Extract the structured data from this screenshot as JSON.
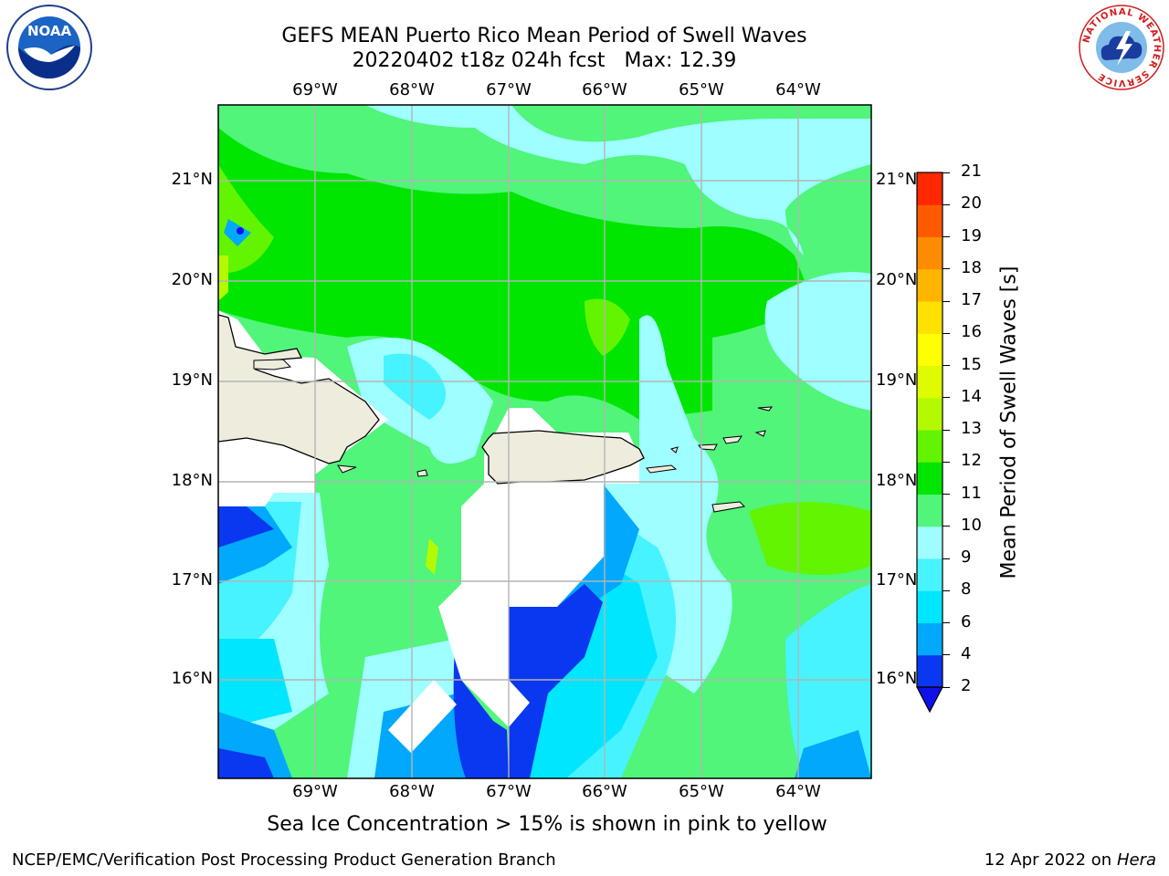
{
  "title": {
    "line1": "GEFS MEAN Puerto Rico Mean Period of Swell Waves",
    "line2": "20220402 t18z 024h fcst",
    "max_label": "Max: 12.39"
  },
  "map": {
    "lon_labels": [
      "69°W",
      "68°W",
      "67°W",
      "66°W",
      "65°W",
      "64°W"
    ],
    "lat_labels": [
      "21°N",
      "20°N",
      "19°N",
      "18°N",
      "17°N",
      "16°N"
    ],
    "land_color": "#eeecdd"
  },
  "colorbar": {
    "label": "Mean Period of Swell Waves [s]",
    "ticks": [
      "2",
      "4",
      "6",
      "8",
      "9",
      "10",
      "11",
      "12",
      "13",
      "14",
      "15",
      "16",
      "17",
      "18",
      "19",
      "20",
      "21"
    ],
    "colors": [
      "#0a37f0",
      "#02a8fb",
      "#00e6ff",
      "#47f3ff",
      "#9ffeff",
      "#50f57a",
      "#00e600",
      "#62f400",
      "#b5f900",
      "#dffb00",
      "#ffff00",
      "#ffe100",
      "#ffb400",
      "#ff8c00",
      "#ff5a00",
      "#ff2800",
      "#ff0000"
    ],
    "under_color": "#1010e8"
  },
  "note": "Sea Ice Concentration > 15% is shown in pink to yellow",
  "footer": {
    "left": "NCEP/EMC/Verification Post Processing Product Generation Branch",
    "date": "12 Apr 2022 on",
    "machine": "Hera"
  },
  "logos": {
    "noaa_text": "NOAA",
    "nws_text": "NATIONAL WEATHER SERVICE"
  }
}
